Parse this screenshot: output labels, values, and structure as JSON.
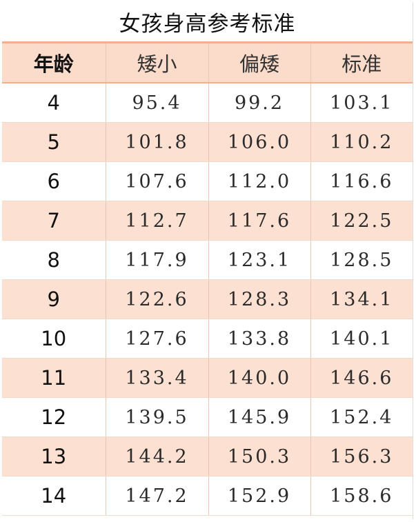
{
  "title": "女孩身高参考标准",
  "headers": [
    "年龄",
    "矮小",
    "偏矮",
    "标准"
  ],
  "rows": [
    {
      "age": "4",
      "short": "95.4",
      "below": "99.2",
      "standard": "103.1"
    },
    {
      "age": "5",
      "short": "101.8",
      "below": "106.0",
      "standard": "110.2"
    },
    {
      "age": "6",
      "short": "107.6",
      "below": "112.0",
      "standard": "116.6"
    },
    {
      "age": "7",
      "short": "112.7",
      "below": "117.6",
      "standard": "122.5"
    },
    {
      "age": "8",
      "short": "117.9",
      "below": "123.1",
      "standard": "128.5"
    },
    {
      "age": "9",
      "short": "122.6",
      "below": "128.3",
      "standard": "134.1"
    },
    {
      "age": "10",
      "short": "127.6",
      "below": "133.8",
      "standard": "140.1"
    },
    {
      "age": "11",
      "short": "133.4",
      "below": "140.0",
      "standard": "146.6"
    },
    {
      "age": "12",
      "short": "139.5",
      "below": "145.9",
      "standard": "152.4"
    },
    {
      "age": "13",
      "short": "144.2",
      "below": "150.3",
      "standard": "156.3"
    },
    {
      "age": "14",
      "short": "147.2",
      "below": "152.9",
      "standard": "158.6"
    }
  ],
  "colors": {
    "header_bg": "#fbdbc9",
    "stripe_bg": "#fce0d1",
    "border_accent": "#f4b08c"
  }
}
